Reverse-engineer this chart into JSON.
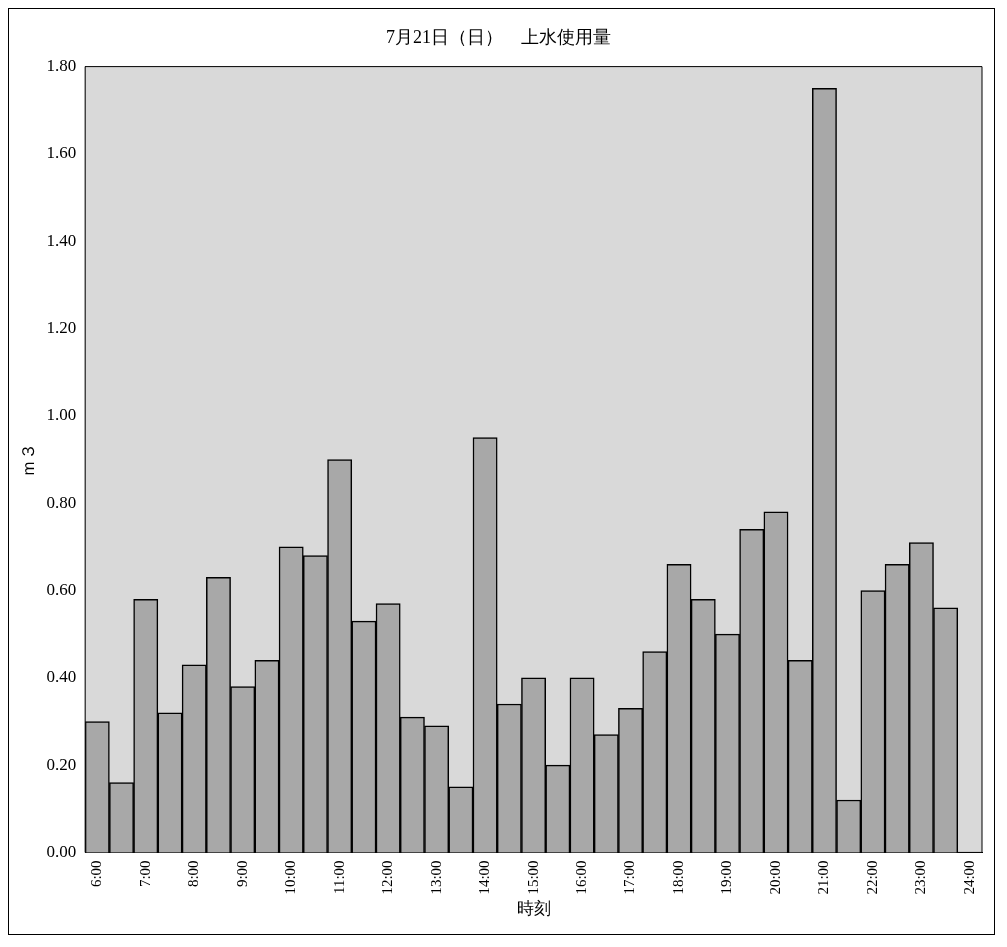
{
  "chart_data": {
    "type": "bar",
    "title": "7月21日（日）　上水使用量",
    "xlabel": "時刻",
    "ylabel": "ｍ３",
    "categories": [
      "6:00",
      null,
      "7:00",
      null,
      "8:00",
      null,
      "9:00",
      null,
      "10:00",
      null,
      "11:00",
      null,
      "12:00",
      null,
      "13:00",
      null,
      "14:00",
      null,
      "15:00",
      null,
      "16:00",
      null,
      "17:00",
      null,
      "18:00",
      null,
      "19:00",
      null,
      "20:00",
      null,
      "21:00",
      null,
      "22:00",
      null,
      "23:00",
      null,
      "24:00"
    ],
    "series": [
      {
        "color": "#a8a8a8",
        "values": [
          0.3,
          0.16,
          0.58,
          0.32,
          0.43,
          0.63,
          0.38,
          0.44,
          0.7,
          0.68,
          0.9,
          0.53,
          0.57,
          0.31,
          0.29,
          0.15,
          0.95,
          0.34,
          0.4,
          0.2,
          0.4,
          0.27,
          0.33,
          0.46,
          0.66,
          0.58,
          0.5,
          0.74,
          0.78,
          0.44,
          1.75,
          0.12,
          0.6,
          0.66,
          0.71,
          0.56,
          null
        ]
      }
    ],
    "ylim": [
      0,
      1.8
    ],
    "yticks": [
      {
        "value": 0,
        "label": "0.00"
      },
      {
        "value": 0.2,
        "label": "0.20"
      },
      {
        "value": 0.4,
        "label": "0.40"
      },
      {
        "value": 0.6,
        "label": "0.60"
      },
      {
        "value": 0.8,
        "label": "0.80"
      },
      {
        "value": 1,
        "label": "1.00"
      },
      {
        "value": 1.2,
        "label": "1.20"
      },
      {
        "value": 1.4,
        "label": "1.40"
      },
      {
        "value": 1.6,
        "label": "1.60"
      },
      {
        "value": 1.8,
        "label": "1.80"
      }
    ],
    "grid": false,
    "legend": false
  }
}
